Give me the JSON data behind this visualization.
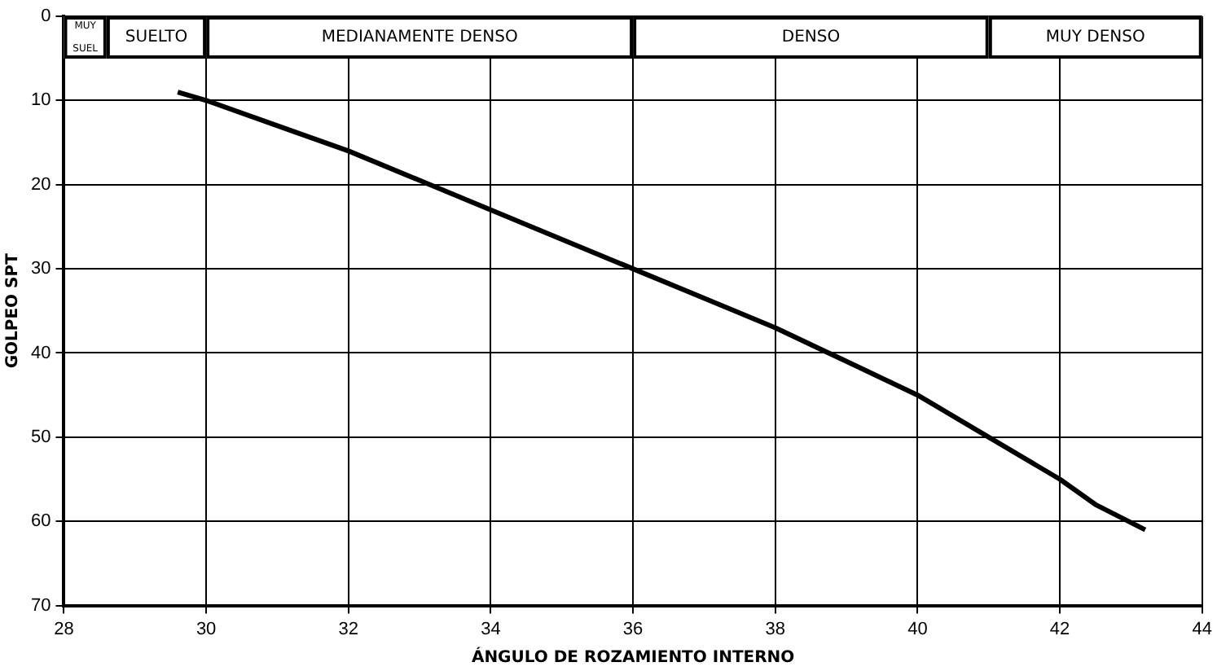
{
  "chart_data": {
    "type": "line",
    "xlabel": "ÁNGULO DE ROZAMIENTO INTERNO",
    "ylabel": "GOLPEO SPT",
    "x": [
      29.6,
      30,
      31,
      32,
      33,
      34,
      35,
      36,
      37,
      38,
      39,
      40,
      41,
      42,
      42.5,
      43.2
    ],
    "series": [
      {
        "color": "#000000",
        "values": [
          9,
          10,
          13,
          16,
          19.5,
          23,
          26.5,
          30,
          33.5,
          37,
          41,
          45,
          50,
          55,
          58,
          61
        ]
      }
    ],
    "xlim": [
      28,
      44
    ],
    "xticks": [
      28,
      30,
      32,
      34,
      36,
      38,
      40,
      42,
      44
    ],
    "ylim": [
      70,
      0
    ],
    "yticks": [
      0,
      10,
      20,
      30,
      40,
      50,
      60,
      70
    ],
    "grid": true,
    "legend": false,
    "marker": "none",
    "line_style": "solid",
    "bands": [
      {
        "axis": "x",
        "from": 28,
        "to": 28.6,
        "label": "MUY SUEL"
      },
      {
        "axis": "x",
        "from": 28.6,
        "to": 30,
        "label": "SUELTO"
      },
      {
        "axis": "x",
        "from": 30,
        "to": 36,
        "label": "MEDIANAMENTE DENSO"
      },
      {
        "axis": "x",
        "from": 36,
        "to": 41,
        "label": "DENSO"
      },
      {
        "axis": "x",
        "from": 41,
        "to": 44,
        "label": "MUY DENSO"
      }
    ]
  }
}
